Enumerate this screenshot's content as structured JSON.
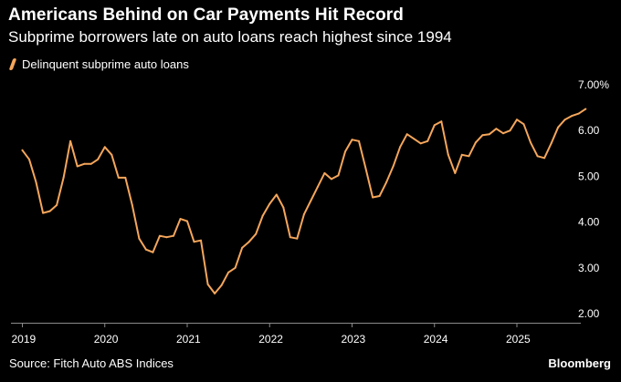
{
  "header": {
    "title": "Americans Behind on Car Payments Hit Record",
    "subtitle": "Subprime borrowers late on auto loans reach highest since 1994"
  },
  "footer": {
    "source": "Source: Fitch Auto ABS Indices",
    "brand": "Bloomberg"
  },
  "chart_data": {
    "type": "line",
    "title": "Americans Behind on Car Payments Hit Record",
    "subtitle": "Subprime borrowers late on auto loans reach highest since 1994",
    "xlabel": "",
    "ylabel": "",
    "x_ticks": [
      "2019",
      "2020",
      "2021",
      "2022",
      "2023",
      "2024",
      "2025"
    ],
    "y_ticks": [
      "7.00%",
      "6.00",
      "5.00",
      "4.00",
      "3.00",
      "2.00"
    ],
    "y_tick_values": [
      7,
      6,
      5,
      4,
      3,
      2
    ],
    "ylim": [
      2,
      7
    ],
    "xlim": [
      "2019-01",
      "2025-11"
    ],
    "grid": false,
    "legend_position": "top-left",
    "series": [
      {
        "name": "Delinquent subprime auto loans",
        "color": "#f5a65b",
        "x": [
          "2019-01",
          "2019-02",
          "2019-03",
          "2019-04",
          "2019-05",
          "2019-06",
          "2019-07",
          "2019-08",
          "2019-09",
          "2019-10",
          "2019-11",
          "2019-12",
          "2020-01",
          "2020-02",
          "2020-03",
          "2020-04",
          "2020-05",
          "2020-06",
          "2020-07",
          "2020-08",
          "2020-09",
          "2020-10",
          "2020-11",
          "2020-12",
          "2021-01",
          "2021-02",
          "2021-03",
          "2021-04",
          "2021-05",
          "2021-06",
          "2021-07",
          "2021-08",
          "2021-09",
          "2021-10",
          "2021-11",
          "2021-12",
          "2022-01",
          "2022-02",
          "2022-03",
          "2022-04",
          "2022-05",
          "2022-06",
          "2022-07",
          "2022-08",
          "2022-09",
          "2022-10",
          "2022-11",
          "2022-12",
          "2023-01",
          "2023-02",
          "2023-03",
          "2023-04",
          "2023-05",
          "2023-06",
          "2023-07",
          "2023-08",
          "2023-09",
          "2023-10",
          "2023-11",
          "2023-12",
          "2024-01",
          "2024-02",
          "2024-03",
          "2024-04",
          "2024-05",
          "2024-06",
          "2024-07",
          "2024-08",
          "2024-09",
          "2024-10",
          "2024-11",
          "2024-12",
          "2025-01",
          "2025-02",
          "2025-03",
          "2025-04",
          "2025-05",
          "2025-06",
          "2025-07",
          "2025-08",
          "2025-09",
          "2025-10",
          "2025-11"
        ],
        "values": [
          5.55,
          5.35,
          4.85,
          4.18,
          4.22,
          4.35,
          4.95,
          5.75,
          5.2,
          5.25,
          5.25,
          5.35,
          5.62,
          5.45,
          4.95,
          4.95,
          4.35,
          3.62,
          3.38,
          3.32,
          3.68,
          3.65,
          3.68,
          4.05,
          4.0,
          3.55,
          3.58,
          2.62,
          2.42,
          2.6,
          2.88,
          2.98,
          3.42,
          3.55,
          3.72,
          4.12,
          4.38,
          4.58,
          4.3,
          3.65,
          3.62,
          4.15,
          4.45,
          4.75,
          5.05,
          4.92,
          5.0,
          5.52,
          5.78,
          5.75,
          5.15,
          4.52,
          4.55,
          4.85,
          5.2,
          5.62,
          5.9,
          5.8,
          5.7,
          5.75,
          6.1,
          6.18,
          5.45,
          5.05,
          5.45,
          5.42,
          5.72,
          5.88,
          5.9,
          6.02,
          5.92,
          5.98,
          6.22,
          6.12,
          5.72,
          5.42,
          5.38,
          5.7,
          6.05,
          6.22,
          6.3,
          6.35,
          6.45
        ]
      }
    ]
  }
}
